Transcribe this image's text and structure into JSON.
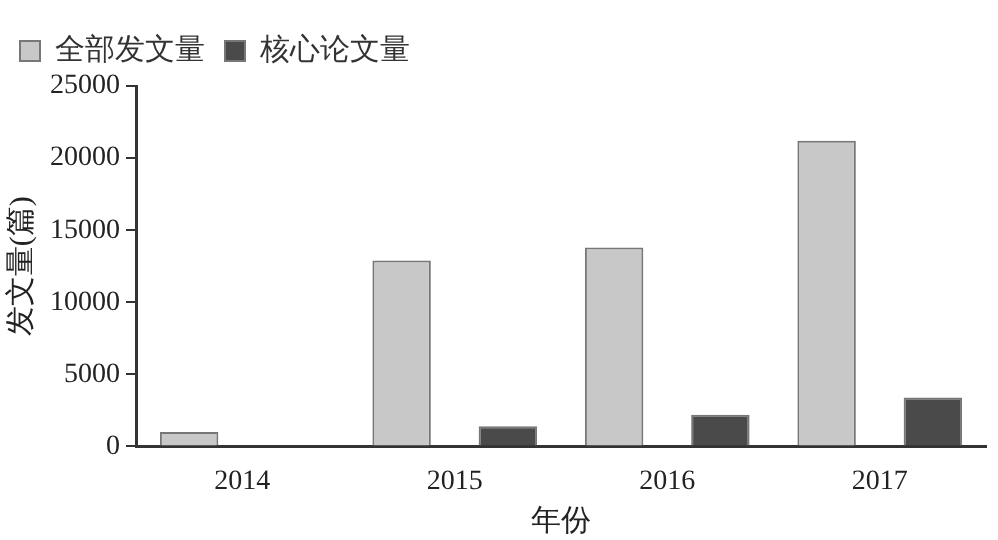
{
  "chart_data": {
    "type": "bar",
    "xlabel": "年份",
    "ylabel": "发文量(篇)",
    "categories": [
      "2014",
      "2015",
      "2016",
      "2017"
    ],
    "series": [
      {
        "name": "全部发文量",
        "color": "#c8c8c8",
        "values": [
          1000,
          12900,
          13800,
          21200
        ]
      },
      {
        "name": "核心论文量",
        "color": "#4a4a4a",
        "values": [
          0,
          1400,
          2200,
          3400
        ]
      }
    ],
    "ylim": [
      0,
      25000
    ],
    "yticks": [
      0,
      5000,
      10000,
      15000,
      20000,
      25000
    ],
    "grid": false,
    "legend": "top left"
  }
}
